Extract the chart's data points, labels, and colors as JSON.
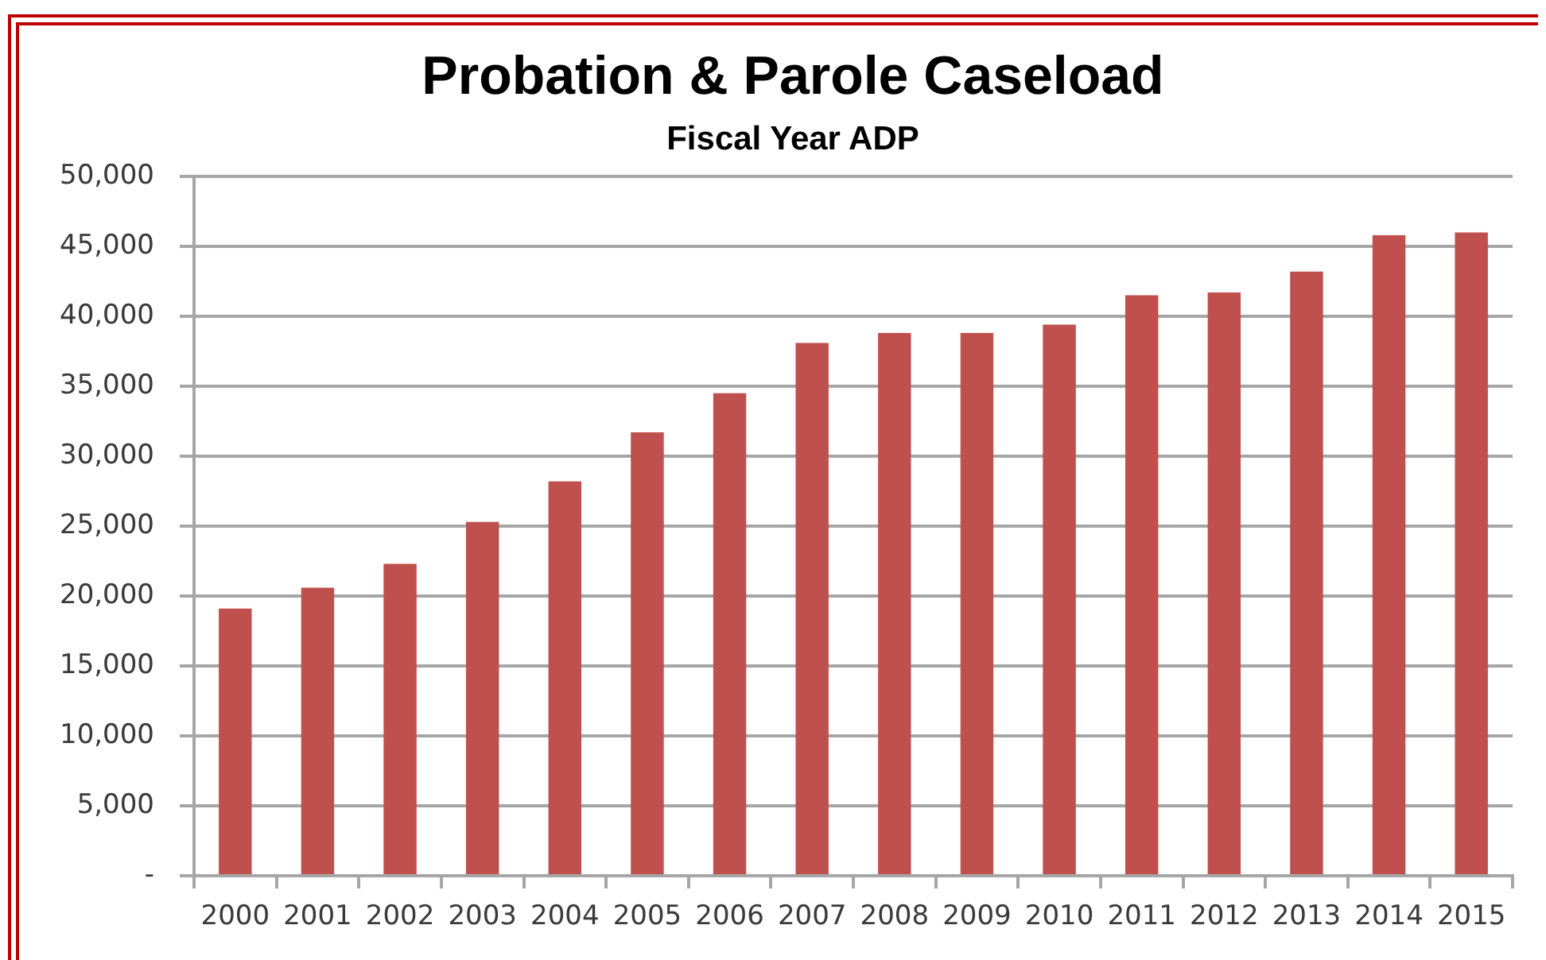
{
  "chart_data": {
    "type": "bar",
    "title": "Probation & Parole Caseload",
    "subtitle": "Fiscal Year ADP",
    "categories": [
      "2000",
      "2001",
      "2002",
      "2003",
      "2004",
      "2005",
      "2006",
      "2007",
      "2008",
      "2009",
      "2010",
      "2011",
      "2012",
      "2013",
      "2014",
      "2015"
    ],
    "values": [
      19100,
      20600,
      22300,
      25300,
      28200,
      31700,
      34500,
      38100,
      38800,
      38800,
      39400,
      41500,
      41700,
      43200,
      45800,
      46000
    ],
    "color": "#c0504d",
    "ylim": [
      0,
      50000
    ],
    "yticks": [
      {
        "value": 0,
        "label": "-"
      },
      {
        "value": 5000,
        "label": "5,000"
      },
      {
        "value": 10000,
        "label": "10,000"
      },
      {
        "value": 15000,
        "label": "15,000"
      },
      {
        "value": 20000,
        "label": "20,000"
      },
      {
        "value": 25000,
        "label": "25,000"
      },
      {
        "value": 30000,
        "label": "30,000"
      },
      {
        "value": 35000,
        "label": "35,000"
      },
      {
        "value": 40000,
        "label": "40,000"
      },
      {
        "value": 45000,
        "label": "45,000"
      },
      {
        "value": 50000,
        "label": "50,000"
      }
    ],
    "grid": "y"
  }
}
